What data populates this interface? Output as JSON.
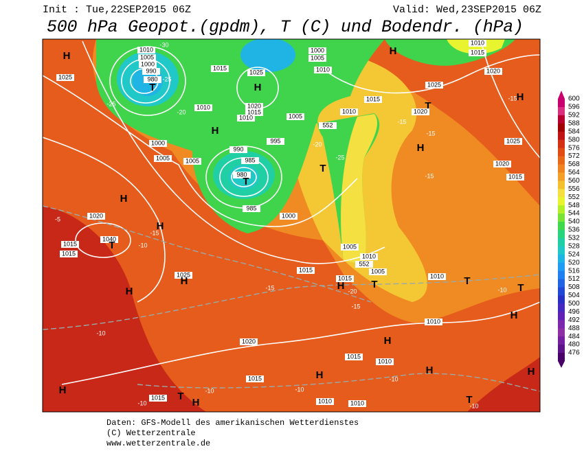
{
  "header": {
    "init": "Init : Tue,22SEP2015 06Z",
    "valid": "Valid: Wed,23SEP2015 06Z",
    "title": "500 hPa Geopot.(gpdm), T (C) und Bodendr. (hPa)"
  },
  "colorbar": {
    "levels": [
      600,
      596,
      592,
      588,
      584,
      580,
      576,
      572,
      568,
      564,
      560,
      556,
      552,
      548,
      544,
      540,
      536,
      532,
      528,
      524,
      520,
      516,
      512,
      508,
      504,
      500,
      496,
      492,
      488,
      484,
      480,
      476
    ],
    "colors": [
      "#c8006e",
      "#d8307e",
      "#b80030",
      "#a00000",
      "#c01414",
      "#d43014",
      "#e04c14",
      "#e86818",
      "#f08420",
      "#f4a028",
      "#f4c030",
      "#f4e040",
      "#e8f430",
      "#b4f028",
      "#78e438",
      "#40d84c",
      "#28d47c",
      "#20d0a4",
      "#20c8c8",
      "#20b4e4",
      "#209cf4",
      "#2080f0",
      "#2064e4",
      "#2048d4",
      "#2830c4",
      "#4428c0",
      "#6020b4",
      "#7c28ac",
      "#8c30a4",
      "#7420a0",
      "#5c1488",
      "#480068"
    ]
  },
  "map": {
    "labels": [
      "H",
      "1025",
      "1010",
      "1005",
      "1000",
      "990",
      "980",
      "T",
      "1015",
      "1025",
      "H",
      "1020",
      "1015",
      "1010",
      "1005",
      "1000",
      "1005",
      "1010",
      "H",
      "1010",
      "1015",
      "1020",
      "1025",
      "1015",
      "1010",
      "T",
      "H",
      "1020",
      "H",
      "1025",
      "1020",
      "1015",
      "1010",
      "H",
      "1000",
      "1005",
      "1005",
      "995",
      "990",
      "985",
      "980",
      "T",
      "985",
      "1000",
      "T",
      "1005",
      "1010",
      "1005",
      "1015",
      "1015",
      "H",
      "T",
      "H",
      "1020",
      "1040",
      "T",
      "1015",
      "1015",
      "H",
      "1025",
      "H",
      "H",
      "1010",
      "T",
      "T",
      "H",
      "1010",
      "1020",
      "H",
      "1015",
      "1010",
      "H",
      "H",
      "H",
      "1015",
      "H",
      "T",
      "1015",
      "H",
      "1010",
      "1010",
      "T",
      "552",
      "552",
      "-30",
      "-25",
      "-25",
      "-20",
      "-20",
      "-25",
      "-15",
      "-15",
      "-15",
      "-15",
      "-10",
      "-5",
      "-15",
      "-15",
      "-20",
      "-15",
      "-10",
      "-10",
      "-10",
      "-10",
      "-10",
      "-10",
      "-10"
    ]
  },
  "footer": {
    "line1": "Daten: GFS-Modell des amerikanischen Wetterdienstes",
    "line2": "(C) Wetterzentrale",
    "line3": "www.wetterzentrale.de"
  }
}
